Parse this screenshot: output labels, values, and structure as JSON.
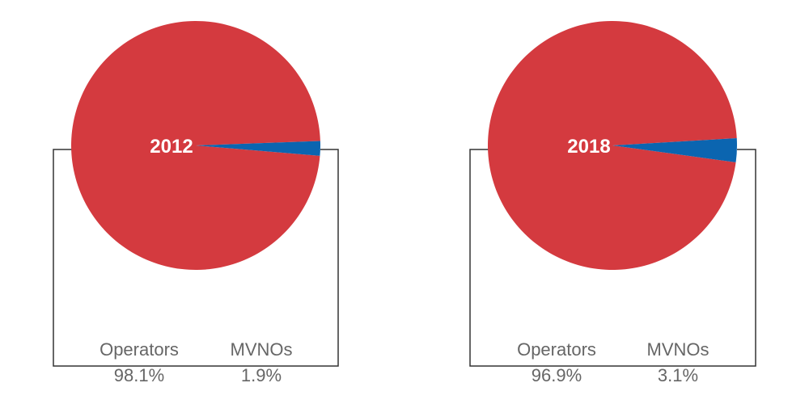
{
  "chart_data": [
    {
      "type": "pie",
      "year_label": "2012",
      "slices": [
        {
          "name": "Operators",
          "value": 98.1,
          "value_label": "98.1%",
          "color": "#d43a3f"
        },
        {
          "name": "MVNOs",
          "value": 1.9,
          "value_label": "1.9%",
          "color": "#0b65b0"
        }
      ]
    },
    {
      "type": "pie",
      "year_label": "2018",
      "slices": [
        {
          "name": "Operators",
          "value": 96.9,
          "value_label": "96.9%",
          "color": "#d43a3f"
        },
        {
          "name": "MVNOs",
          "value": 3.1,
          "value_label": "3.1%",
          "color": "#0b65b0"
        }
      ]
    }
  ]
}
